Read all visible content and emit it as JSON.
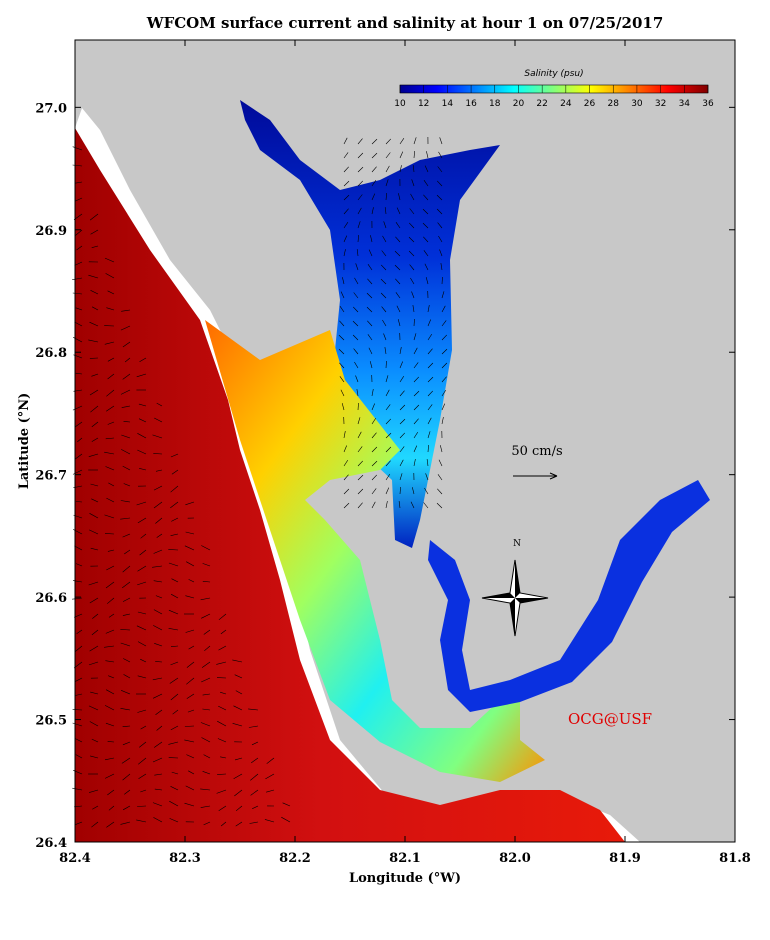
{
  "chart_data": {
    "type": "map",
    "title": "WFCOM surface current and salinity at hour 1 on 07/25/2017",
    "x_label": "Longitude (°W)",
    "y_label": "Latitude (°N)",
    "xlim": [
      82.4,
      81.8
    ],
    "xticks": [
      82.4,
      82.3,
      82.2,
      82.1,
      {
        "value": 82,
        "label": "82.0"
      },
      81.9,
      81.8
    ],
    "ylim": [
      26.4,
      27.055
    ],
    "yticks": [
      26.4,
      26.5,
      26.6,
      26.7,
      26.8,
      26.9,
      {
        "value": 27,
        "label": "27.0"
      }
    ],
    "colorbar": {
      "title": "Salinity (psu)",
      "range": [
        10,
        36
      ],
      "ticks": [
        10,
        12,
        14,
        16,
        18,
        20,
        22,
        24,
        26,
        28,
        30,
        32,
        34,
        36
      ]
    },
    "annotations": {
      "scale": "50 cm/s",
      "north": "N",
      "credit": "OCG@USF"
    }
  }
}
